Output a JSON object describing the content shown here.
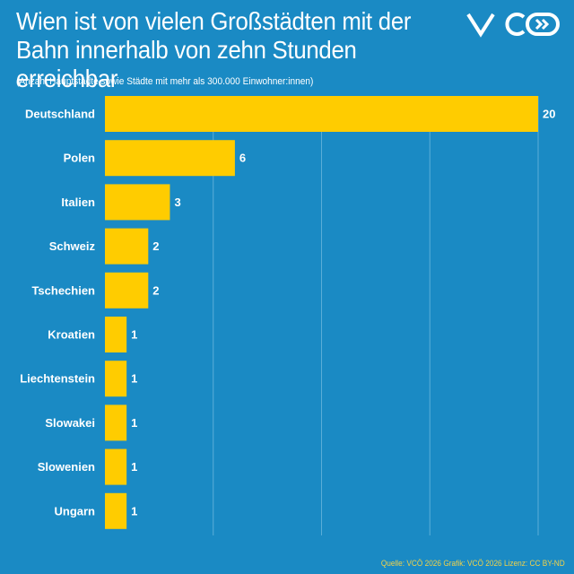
{
  "brand": {
    "logo_text": "VCÖ",
    "colors": {
      "background": "#1a8ac4",
      "bar": "#ffcc00",
      "footer": "#f0d24a",
      "text": "#ffffff"
    }
  },
  "header": {
    "title": "Wien ist von vielen Großstädten mit der Bahn innerhalb von zehn Stunden erreichbar",
    "subtitle": "(Anzahl Hauptstädte sowie Städte mit mehr als 300.000 Einwohner:innen)"
  },
  "footer": {
    "source": "Quelle: VCÖ 2026 Grafik: VCÖ 2026 Lizenz: CC BY-ND"
  },
  "chart_data": {
    "type": "bar",
    "orientation": "horizontal",
    "categories": [
      "Deutschland",
      "Polen",
      "Italien",
      "Schweiz",
      "Tschechien",
      "Kroatien",
      "Liechtenstein",
      "Slowakei",
      "Slowenien",
      "Ungarn"
    ],
    "values": [
      20,
      6,
      3,
      2,
      2,
      1,
      1,
      1,
      1,
      1
    ],
    "xlim": [
      0,
      20
    ],
    "grid": true,
    "legend": "none"
  }
}
